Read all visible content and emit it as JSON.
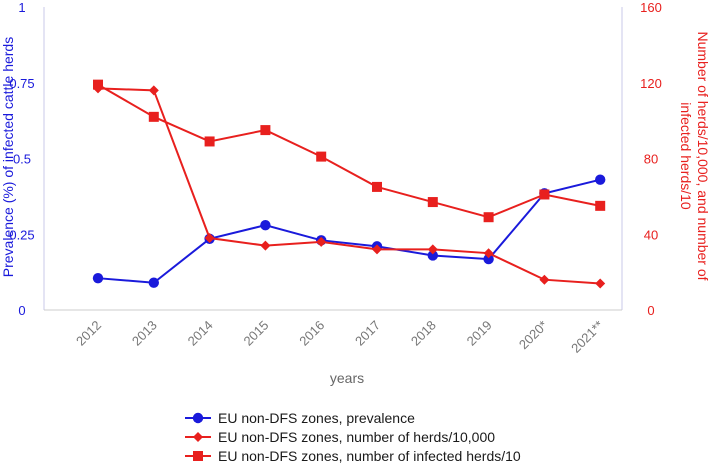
{
  "chart_data": {
    "type": "line",
    "categories": [
      "2012",
      "2013",
      "2014",
      "2015",
      "2016",
      "2017",
      "2018",
      "2019",
      "2020*",
      "2021**"
    ],
    "xlabel": "years",
    "y_left": {
      "label": "Prevalence (%) of infected cattle herds",
      "range": [
        0,
        1
      ],
      "ticks": [
        "0",
        "0.25",
        "0.5",
        "0.75",
        "1"
      ],
      "tick_values": [
        0,
        0.25,
        0.5,
        0.75,
        1
      ],
      "color": "#1a1adb"
    },
    "y_right": {
      "label_line1": "Number of herds/10,000, and number of",
      "label_line2": "infected herds/10",
      "range": [
        0,
        160
      ],
      "ticks": [
        "0",
        "40",
        "80",
        "120",
        "160"
      ],
      "tick_values": [
        0,
        40,
        80,
        120,
        160
      ],
      "color": "#e8201e"
    },
    "series": [
      {
        "name": "EU non-DFS zones, prevalence",
        "axis": "left",
        "marker": "circle",
        "color": "#1a1adb",
        "values": [
          0.105,
          0.09,
          0.235,
          0.28,
          0.23,
          0.21,
          0.18,
          0.168,
          0.385,
          0.43
        ]
      },
      {
        "name": "EU non-DFS zones, number of herds/10,000",
        "axis": "right",
        "marker": "diamond",
        "color": "#e8201e",
        "values": [
          117,
          116,
          38,
          34,
          36,
          32,
          32,
          30,
          16,
          14
        ]
      },
      {
        "name": "EU non-DFS zones, number of infected herds/10",
        "axis": "right",
        "marker": "square",
        "color": "#e8201e",
        "values": [
          119,
          102,
          89,
          95,
          81,
          65,
          57,
          49,
          61,
          55
        ]
      }
    ],
    "legend": "bottom-center",
    "grid": false
  }
}
